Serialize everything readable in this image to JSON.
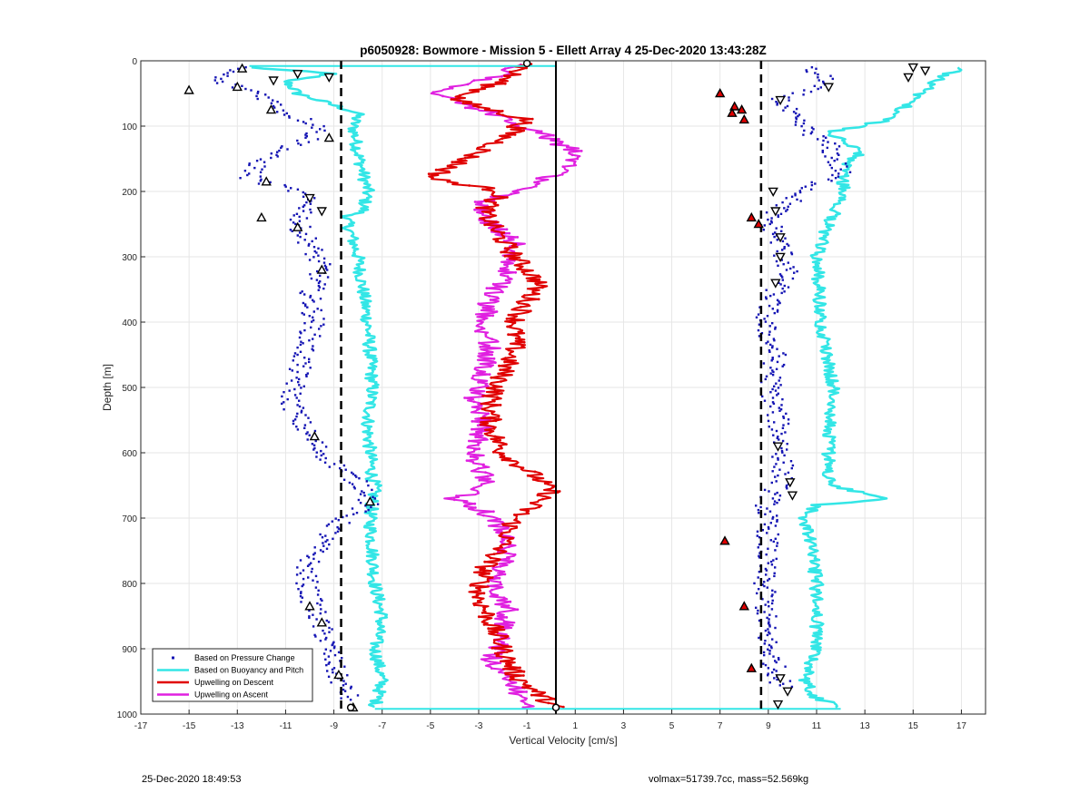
{
  "footer": {
    "left": "25-Dec-2020 18:49:53",
    "right": "volmax=51739.7cc, mass=52.569kg"
  },
  "chart_data": {
    "type": "scatter",
    "title": "p6050928: Bowmore - Mission 5 - Ellett Array 4 25-Dec-2020 13:43:28Z",
    "xlabel": "Vertical Velocity [cm/s]",
    "ylabel": "Depth [m]",
    "xlim": [
      -17,
      18
    ],
    "ylim": [
      0,
      1000
    ],
    "y_reversed": true,
    "xticks": [
      -17,
      -15,
      -13,
      -11,
      -9,
      -7,
      -5,
      -3,
      -1,
      1,
      3,
      5,
      7,
      9,
      11,
      13,
      15,
      17
    ],
    "yticks": [
      0,
      100,
      200,
      300,
      400,
      500,
      600,
      700,
      800,
      900,
      1000
    ],
    "grid": true,
    "legend_position": "bottom-left",
    "colors": {
      "pressure": "#1414b4",
      "buoyancy": "#33e6e6",
      "descent": "#e00000",
      "ascent": "#e020e0",
      "grid": "#e6e6e6"
    },
    "reference_lines": [
      {
        "x": -8.7,
        "style": "dashed"
      },
      {
        "x": 8.7,
        "style": "dashed"
      },
      {
        "x": 0.2,
        "style": "solid"
      }
    ],
    "series": [
      {
        "name": "Based on Pressure Change",
        "style": "dots",
        "color": "#1414b4",
        "profiles": [
          {
            "depth": [
              10,
              30,
              50,
              80,
              100,
              120,
              150,
              180,
              200,
              220,
              250,
              280,
              320,
              360,
              400,
              440,
              480,
              520,
              560,
              600,
              640,
              660,
              680,
              700,
              740,
              780,
              820,
              860,
              900,
              940,
              980
            ],
            "x": [
              -13,
              -14,
              -12,
              -11,
              -9.5,
              -10,
              -12,
              -12.5,
              -10.5,
              -10,
              -10.5,
              -10,
              -9.5,
              -10,
              -9.8,
              -10.2,
              -10.5,
              -10.8,
              -10.3,
              -9.5,
              -8.2,
              -7.5,
              -7.6,
              -8.6,
              -9.6,
              -10.2,
              -10,
              -9.6,
              -9.2,
              -8.9,
              -8.3
            ]
          },
          {
            "depth": [
              10,
              30,
              60,
              90,
              130,
              170,
              200,
              240,
              280,
              320,
              360,
              400,
              450,
              500,
              550,
              600,
              640,
              680,
              720,
              760,
              800,
              840,
              880,
              920,
              960
            ],
            "x": [
              10.5,
              11.5,
              9.5,
              10,
              11.5,
              12,
              10.5,
              9,
              9.5,
              9.8,
              9.2,
              8.8,
              9.3,
              9.1,
              9.4,
              9.6,
              9.6,
              8.9,
              9.0,
              8.9,
              8.8,
              8.9,
              8.9,
              9.2,
              9.6
            ]
          }
        ]
      },
      {
        "name": "Based on Buoyancy and Pitch",
        "style": "line",
        "color": "#33e6e6",
        "profiles": [
          {
            "depth": [
              10,
              20,
              30,
              50,
              80,
              100,
              140,
              200,
              230,
              240,
              300,
              400,
              500,
              560,
              600,
              640,
              650,
              700,
              800,
              850,
              900,
              950,
              990
            ],
            "x": [
              -12.5,
              -9,
              -11,
              -10.5,
              -8,
              -8.2,
              -8,
              -7.6,
              -7.8,
              -8.5,
              -8,
              -7.6,
              -7.4,
              -7.6,
              -7.5,
              -7.4,
              -7.3,
              -7.5,
              -7.3,
              -7.0,
              -7.3,
              -7.0,
              -7.3
            ]
          },
          {
            "depth": [
              990,
              985,
              975,
              950,
              900,
              850,
              800,
              750,
              700,
              680,
              670,
              650,
              600,
              500,
              400,
              300,
              250,
              230,
              200,
              170,
              140,
              110,
              90,
              60,
              30,
              10
            ],
            "x": [
              12,
              11.8,
              11,
              10.5,
              11,
              11,
              11,
              10.8,
              10.5,
              11,
              14,
              11.5,
              11.5,
              11.7,
              11.2,
              11,
              11.5,
              11.8,
              12.2,
              12,
              12.8,
              11.5,
              14,
              15,
              16,
              17
            ]
          }
        ]
      },
      {
        "name": "Upwelling on Descent",
        "style": "line",
        "color": "#e00000",
        "profiles": [
          {
            "depth": [
              5,
              30,
              60,
              90,
              120,
              150,
              180,
              200,
              230,
              260,
              300,
              340,
              370,
              400,
              440,
              480,
              520,
              560,
              600,
              640,
              660,
              700,
              740,
              780,
              820,
              860,
              900,
              940,
              970,
              990
            ],
            "x": [
              -1,
              -2,
              -4,
              -1,
              -2,
              -3.5,
              -5,
              -2,
              -2.8,
              -2.3,
              -1.5,
              -0.5,
              -1.0,
              -1.5,
              -1.5,
              -2,
              -2.5,
              -2.5,
              -2,
              -0.5,
              0,
              -1.5,
              -2,
              -2.8,
              -3.0,
              -2.5,
              -2.0,
              -1.5,
              -0.5,
              0.2
            ]
          }
        ]
      },
      {
        "name": "Upwelling on Ascent",
        "style": "line",
        "color": "#e020e0",
        "profiles": [
          {
            "depth": [
              990,
              960,
              920,
              880,
              840,
              800,
              760,
              720,
              690,
              670,
              650,
              620,
              600,
              560,
              520,
              480,
              440,
              400,
              360,
              320,
              280,
              250,
              220,
              200,
              170,
              140,
              110,
              80,
              50,
              20,
              5
            ],
            "x": [
              -1,
              -1.5,
              -2.5,
              -2.0,
              -1.8,
              -2.5,
              -1.8,
              -2.0,
              -2.8,
              -4,
              -2.5,
              -3,
              -3.2,
              -2.8,
              -3.2,
              -2.8,
              -2.5,
              -2.8,
              -2.5,
              -1.8,
              -1.5,
              -2.5,
              -3.0,
              -1.5,
              0.5,
              1.0,
              -0.5,
              -2.5,
              -5,
              -2,
              -1
            ]
          }
        ]
      }
    ],
    "markers": {
      "descent_triangles_up": [
        [
          -12.8,
          12
        ],
        [
          -13,
          40
        ],
        [
          -15,
          45
        ],
        [
          -11.6,
          75
        ],
        [
          -9.2,
          118
        ],
        [
          -11.8,
          185
        ],
        [
          -12,
          240
        ],
        [
          -10.5,
          255
        ],
        [
          -9.5,
          320
        ],
        [
          -9.8,
          575
        ],
        [
          -7.5,
          675
        ],
        [
          -10,
          835
        ],
        [
          -9.5,
          860
        ],
        [
          -8.8,
          940
        ],
        [
          -8.2,
          990
        ]
      ],
      "ascent_triangles_down": [
        [
          -11.5,
          30
        ],
        [
          -10.5,
          20
        ],
        [
          -9.2,
          25
        ],
        [
          -10,
          210
        ],
        [
          -9.5,
          230
        ],
        [
          15,
          10
        ],
        [
          15.5,
          15
        ],
        [
          14.8,
          25
        ],
        [
          11.5,
          40
        ],
        [
          9.5,
          60
        ],
        [
          9.2,
          200
        ],
        [
          9.3,
          230
        ],
        [
          9.5,
          270
        ],
        [
          9.5,
          300
        ],
        [
          9.3,
          340
        ],
        [
          9.4,
          590
        ],
        [
          9.9,
          645
        ],
        [
          10,
          665
        ],
        [
          9.5,
          945
        ],
        [
          9.8,
          965
        ],
        [
          9.4,
          985
        ]
      ],
      "red_triangles": [
        [
          7,
          50
        ],
        [
          7.6,
          70
        ],
        [
          7.9,
          75
        ],
        [
          7.5,
          80
        ],
        [
          8,
          90
        ],
        [
          8.3,
          240
        ],
        [
          8.6,
          250
        ],
        [
          7.2,
          735
        ],
        [
          8,
          835
        ],
        [
          8.3,
          930
        ]
      ]
    }
  }
}
